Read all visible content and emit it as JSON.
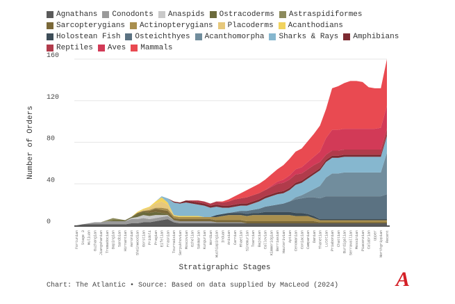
{
  "chart_data": {
    "type": "area",
    "stacked": true,
    "title": "",
    "xlabel": "Stratigraphic Stages",
    "ylabel": "Number of Orders",
    "ylim": [
      0,
      160
    ],
    "yticks": [
      0,
      40,
      80,
      120,
      160
    ],
    "grid": true,
    "legend_position": "top",
    "categories": [
      "Fortunian",
      "Stage 3",
      "Wuliuan",
      "Guzhangian",
      "Jiangshanian",
      "Tremadocian",
      "Dapingian",
      "Sandbian",
      "Hirnantian",
      "Aeronian",
      "Sheinwoodian",
      "Gorstian",
      "Pridoli",
      "Pragian",
      "Eifelian",
      "Frasnian",
      "Tournaisian",
      "Serpukhovian",
      "Moscovian",
      "Gzhelian",
      "Sakmarian",
      "Kungurian",
      "Wordian",
      "Wuchiapingian",
      "Induan",
      "Anisian",
      "Carnian",
      "Rhaetian",
      "Sinemurian",
      "Toarcian",
      "Bajocian",
      "Callovian",
      "Kimmeridgian",
      "Berriasian",
      "Hauterivian",
      "Aptian",
      "Cenomanian",
      "Coniacian",
      "Campanian",
      "Danian",
      "Thanetian",
      "Lutetian",
      "Priabonian",
      "Chattian",
      "Burdigalian",
      "Serravallian",
      "Messinian",
      "Piacenzian",
      "Calabrian",
      "Upper",
      "Northgrippian",
      "Recent"
    ],
    "series": [
      {
        "name": "Agnathans",
        "color": "#5a5a5a",
        "values": [
          0,
          1,
          1,
          1,
          1,
          1,
          1,
          1,
          1,
          2,
          2,
          3,
          3,
          4,
          5,
          6,
          3,
          2,
          2,
          2,
          2,
          2,
          2,
          2,
          2,
          2,
          2,
          2,
          2,
          2,
          2,
          2,
          2,
          2,
          2,
          2,
          2,
          2,
          2,
          2,
          2,
          2,
          2,
          2,
          2,
          2,
          2,
          2,
          2,
          2,
          2,
          2
        ]
      },
      {
        "name": "Conodonts",
        "color": "#9a9a9a",
        "values": [
          0,
          0,
          1,
          2,
          2,
          3,
          3,
          3,
          3,
          4,
          4,
          4,
          3,
          3,
          3,
          3,
          2,
          2,
          2,
          2,
          2,
          2,
          2,
          1,
          1,
          1,
          1,
          1,
          0,
          0,
          0,
          0,
          0,
          0,
          0,
          0,
          0,
          0,
          0,
          0,
          0,
          0,
          0,
          0,
          0,
          0,
          0,
          0,
          0,
          0,
          0,
          0
        ]
      },
      {
        "name": "Anaspids",
        "color": "#c9c9c9",
        "values": [
          0,
          0,
          0,
          0,
          0,
          0,
          0,
          0,
          0,
          1,
          2,
          3,
          3,
          3,
          2,
          1,
          0,
          0,
          0,
          0,
          0,
          0,
          0,
          0,
          0,
          0,
          0,
          0,
          0,
          0,
          0,
          0,
          0,
          0,
          0,
          0,
          0,
          0,
          0,
          0,
          0,
          0,
          0,
          0,
          0,
          0,
          0,
          0,
          0,
          0,
          0,
          0
        ]
      },
      {
        "name": "Ostracoderms",
        "color": "#6b6a3c",
        "values": [
          0,
          0,
          0,
          0,
          0,
          0,
          1,
          1,
          1,
          1,
          3,
          3,
          3,
          3,
          2,
          1,
          0,
          0,
          0,
          0,
          0,
          0,
          0,
          0,
          0,
          0,
          0,
          0,
          0,
          0,
          0,
          0,
          0,
          0,
          0,
          0,
          0,
          0,
          0,
          0,
          0,
          0,
          0,
          0,
          0,
          0,
          0,
          0,
          0,
          0,
          0,
          0
        ]
      },
      {
        "name": "Astraspidiformes",
        "color": "#8c8a5c",
        "values": [
          0,
          0,
          0,
          0,
          0,
          1,
          2,
          1,
          0,
          0,
          0,
          0,
          0,
          0,
          0,
          0,
          0,
          0,
          0,
          0,
          0,
          0,
          0,
          0,
          0,
          0,
          0,
          0,
          0,
          0,
          0,
          0,
          0,
          0,
          0,
          0,
          0,
          0,
          0,
          0,
          0,
          0,
          0,
          0,
          0,
          0,
          0,
          0,
          0,
          0,
          0,
          0
        ]
      },
      {
        "name": "Sarcopterygians",
        "color": "#7a6838",
        "values": [
          0,
          0,
          0,
          0,
          0,
          0,
          0,
          0,
          0,
          0,
          1,
          1,
          2,
          3,
          3,
          3,
          2,
          2,
          2,
          2,
          2,
          2,
          2,
          2,
          2,
          2,
          2,
          2,
          2,
          2,
          2,
          2,
          2,
          2,
          2,
          2,
          2,
          2,
          2,
          2,
          1,
          1,
          1,
          1,
          1,
          1,
          1,
          1,
          1,
          1,
          1,
          1
        ]
      },
      {
        "name": "Actinopterygians",
        "color": "#a98f4e",
        "values": [
          0,
          0,
          0,
          0,
          0,
          0,
          0,
          0,
          0,
          0,
          0,
          0,
          1,
          1,
          2,
          2,
          2,
          2,
          2,
          2,
          2,
          2,
          2,
          3,
          4,
          5,
          5,
          5,
          5,
          6,
          6,
          6,
          6,
          6,
          6,
          6,
          5,
          5,
          5,
          3,
          2,
          2,
          2,
          2,
          2,
          2,
          2,
          2,
          2,
          2,
          2,
          2
        ]
      },
      {
        "name": "Placoderms",
        "color": "#e6c87c",
        "values": [
          0,
          0,
          0,
          0,
          0,
          0,
          0,
          0,
          0,
          0,
          0,
          1,
          2,
          4,
          6,
          4,
          0,
          0,
          0,
          0,
          0,
          0,
          0,
          0,
          0,
          0,
          0,
          0,
          0,
          0,
          0,
          0,
          0,
          0,
          0,
          0,
          0,
          0,
          0,
          0,
          0,
          0,
          0,
          0,
          0,
          0,
          0,
          0,
          0,
          0,
          0,
          0
        ]
      },
      {
        "name": "Acanthodians",
        "color": "#f1d35e",
        "values": [
          0,
          0,
          0,
          0,
          0,
          0,
          0,
          0,
          0,
          0,
          1,
          1,
          1,
          2,
          4,
          2,
          1,
          1,
          1,
          1,
          1,
          0,
          0,
          0,
          0,
          0,
          0,
          0,
          0,
          0,
          0,
          0,
          0,
          0,
          0,
          0,
          0,
          0,
          0,
          0,
          0,
          0,
          0,
          0,
          0,
          0,
          0,
          0,
          0,
          0,
          0,
          0
        ]
      },
      {
        "name": "Holostean Fish",
        "color": "#3d4d58",
        "values": [
          0,
          0,
          0,
          0,
          0,
          0,
          0,
          0,
          0,
          0,
          0,
          0,
          0,
          0,
          0,
          0,
          0,
          0,
          0,
          0,
          0,
          0,
          0,
          2,
          2,
          2,
          2,
          2,
          2,
          2,
          2,
          3,
          3,
          3,
          3,
          3,
          3,
          3,
          2,
          2,
          1,
          1,
          1,
          1,
          1,
          1,
          1,
          1,
          1,
          1,
          1,
          1
        ]
      },
      {
        "name": "Osteichthyes",
        "color": "#5b7282",
        "values": [
          0,
          0,
          0,
          0,
          0,
          0,
          0,
          0,
          0,
          0,
          0,
          0,
          0,
          0,
          0,
          0,
          0,
          0,
          0,
          0,
          0,
          0,
          0,
          0,
          0,
          0,
          1,
          2,
          3,
          3,
          4,
          5,
          6,
          7,
          8,
          10,
          13,
          14,
          16,
          18,
          20,
          22,
          22,
          22,
          22,
          22,
          22,
          22,
          22,
          22,
          22,
          24
        ]
      },
      {
        "name": "Acanthomorpha",
        "color": "#718d9d",
        "values": [
          0,
          0,
          0,
          0,
          0,
          0,
          0,
          0,
          0,
          0,
          0,
          0,
          0,
          0,
          0,
          0,
          0,
          0,
          0,
          0,
          0,
          0,
          0,
          0,
          0,
          0,
          0,
          0,
          0,
          0,
          0,
          0,
          0,
          0,
          0,
          0,
          2,
          3,
          5,
          8,
          12,
          18,
          22,
          22,
          23,
          23,
          23,
          23,
          23,
          23,
          23,
          40
        ]
      },
      {
        "name": "Sharks & Rays",
        "color": "#86b7cf",
        "values": [
          0,
          0,
          0,
          0,
          0,
          0,
          0,
          0,
          0,
          0,
          0,
          0,
          0,
          0,
          1,
          4,
          12,
          12,
          13,
          12,
          11,
          11,
          9,
          8,
          6,
          5,
          5,
          5,
          5,
          6,
          7,
          8,
          9,
          10,
          10,
          11,
          12,
          12,
          13,
          14,
          15,
          15,
          15,
          15,
          15,
          15,
          15,
          15,
          15,
          15,
          15,
          16
        ]
      },
      {
        "name": "Amphibians",
        "color": "#7c2a31",
        "values": [
          0,
          0,
          0,
          0,
          0,
          0,
          0,
          0,
          0,
          0,
          0,
          0,
          0,
          0,
          0,
          0,
          1,
          1,
          2,
          2,
          2,
          2,
          2,
          2,
          2,
          2,
          2,
          2,
          2,
          2,
          2,
          2,
          2,
          2,
          2,
          2,
          2,
          2,
          2,
          2,
          2,
          2,
          2,
          2,
          2,
          2,
          2,
          2,
          2,
          2,
          2,
          2
        ]
      },
      {
        "name": "Reptiles",
        "color": "#b13b4b",
        "values": [
          0,
          0,
          0,
          0,
          0,
          0,
          0,
          0,
          0,
          0,
          0,
          0,
          0,
          0,
          0,
          0,
          0,
          0,
          0,
          1,
          2,
          2,
          2,
          3,
          3,
          4,
          5,
          5,
          6,
          6,
          6,
          6,
          7,
          8,
          8,
          8,
          8,
          7,
          7,
          7,
          6,
          5,
          5,
          5,
          5,
          5,
          5,
          5,
          5,
          5,
          5,
          5
        ]
      },
      {
        "name": "Aves",
        "color": "#d23a57",
        "values": [
          0,
          0,
          0,
          0,
          0,
          0,
          0,
          0,
          0,
          0,
          0,
          0,
          0,
          0,
          0,
          0,
          0,
          0,
          0,
          0,
          0,
          0,
          0,
          0,
          0,
          0,
          0,
          0,
          0,
          0,
          0,
          0,
          1,
          2,
          3,
          4,
          5,
          6,
          7,
          8,
          10,
          16,
          20,
          20,
          20,
          20,
          20,
          20,
          20,
          20,
          21,
          22
        ]
      },
      {
        "name": "Mammals",
        "color": "#e94a51",
        "values": [
          0,
          0,
          0,
          0,
          0,
          0,
          0,
          0,
          0,
          0,
          0,
          0,
          0,
          0,
          0,
          0,
          0,
          0,
          0,
          0,
          0,
          0,
          0,
          0,
          1,
          2,
          3,
          5,
          7,
          8,
          9,
          10,
          11,
          12,
          14,
          16,
          17,
          18,
          20,
          22,
          25,
          28,
          40,
          42,
          44,
          46,
          46,
          45,
          40,
          39,
          38,
          45
        ]
      }
    ]
  },
  "footer": "Chart: The Atlantic • Source: Based on data supplied by MacLeod (2024)",
  "logo": "A"
}
